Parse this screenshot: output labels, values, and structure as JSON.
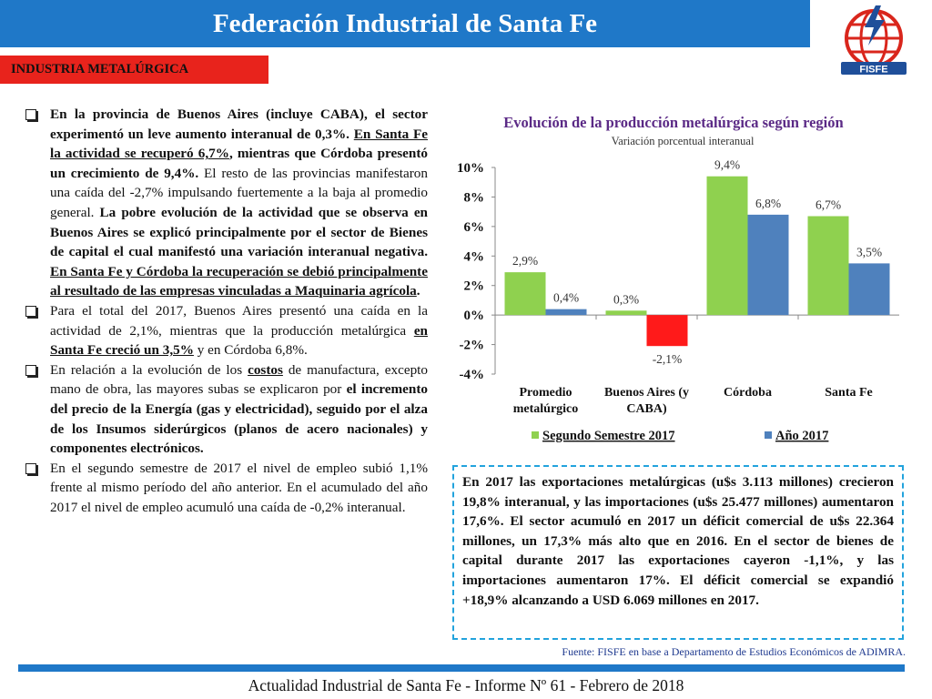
{
  "header": {
    "title": "Federación Industrial de Santa Fe"
  },
  "logo": {
    "text": "FISFE"
  },
  "section": {
    "tag": "INDUSTRIA METALÚRGICA"
  },
  "bullets": {
    "b1": {
      "t1": "En la provincia de Buenos Aires (incluye CABA), el sector experimentó un leve aumento interanual de 0,3%. ",
      "t2": "En Santa Fe la actividad se recuperó 6,7%",
      "t3": ", mientras que Córdoba presentó un crecimiento de 9,4%.",
      "t4": " El resto de las provincias manifestaron una caída del -2,7% impulsando fuertemente a la baja al promedio general. ",
      "t5": "La pobre evolución de la actividad que se observa en Buenos Aires se explicó principalmente por el sector de Bienes de capital el cual manifestó una variación interanual negativa. ",
      "t6": "En Santa Fe y Córdoba la recuperación se debió principalmente al resultado de las empresas vinculadas a Maquinaria agrícola",
      "t7": "."
    },
    "b2": {
      "t1": "Para el total del 2017, Buenos Aires presentó una caída en la actividad de 2,1%, mientras que la producción metalúrgica ",
      "t2": "en Santa Fe creció un 3,5%",
      "t3": " y en Córdoba 6,8%."
    },
    "b3": {
      "t1": "En relación a la evolución de los ",
      "t2": "costos",
      "t3": " de manufactura, excepto mano de obra, las mayores subas se explicaron por ",
      "t4": "el incremento del precio de la Energía (gas y electricidad), seguido por el alza de los Insumos siderúrgicos (planos de acero nacionales) y componentes electrónicos."
    },
    "b4": {
      "t1": "En el segundo semestre de 2017 el nivel de empleo subió 1,1% frente al mismo período del año anterior. En el acumulado del año 2017 el nivel de empleo acumuló una caída de -0,2% interanual."
    }
  },
  "chart_data": {
    "type": "bar",
    "title": "Evolución de la producción metalúrgica según región",
    "subtitle": "Variación porcentual interanual",
    "categories": [
      [
        "Promedio",
        "metalúrgico"
      ],
      [
        "Buenos Aires (y",
        "CABA)"
      ],
      [
        "Córdoba"
      ],
      [
        "Santa Fe"
      ]
    ],
    "series": [
      {
        "name": "Segundo Semestre 2017",
        "color": "#8fd14f",
        "values": [
          2.9,
          0.3,
          9.4,
          6.7
        ],
        "labels": [
          "2,9%",
          "0,3%",
          "9,4%",
          "6,7%"
        ]
      },
      {
        "name": "Año 2017",
        "color": "#4f81bd",
        "values": [
          0.4,
          -2.1,
          6.8,
          3.5
        ],
        "labels": [
          "0,4%",
          "-2,1%",
          "6,8%",
          "3,5%"
        ]
      }
    ],
    "highlight": {
      "series": 1,
      "index": 1,
      "color": "#ff1a1a"
    },
    "ylim": [
      -4,
      10
    ],
    "yticks": [
      {
        "v": 10,
        "label": "10%"
      },
      {
        "v": 8,
        "label": "8%"
      },
      {
        "v": 6,
        "label": "6%"
      },
      {
        "v": 4,
        "label": "4%"
      },
      {
        "v": 2,
        "label": "2%"
      },
      {
        "v": 0,
        "label": "0%"
      },
      {
        "v": -2,
        "label": "-2%"
      },
      {
        "v": -4,
        "label": "-4%"
      }
    ],
    "grid": false,
    "legend": "bottom",
    "title_color": "#5b2a86"
  },
  "callout": {
    "text": "En 2017 las exportaciones metalúrgicas (u$s 3.113 millones) crecieron 19,8% interanual, y las importaciones (u$s 25.477 millones) aumentaron 17,6%. El sector acumuló en 2017 un déficit comercial de u$s 22.364 millones, un 17,3% más alto que en 2016. En el sector de bienes de capital durante 2017 las exportaciones cayeron -1,1%, y las importaciones aumentaron 17%. El déficit comercial se expandió +18,9% alcanzando a USD 6.069 millones en 2017."
  },
  "source": {
    "text": "Fuente: FISFE en base a Departamento de Estudios Económicos de ADIMRA."
  },
  "footer": {
    "text": "Actualidad Industrial de Santa Fe - Informe Nº 61 - Febrero de 2018"
  }
}
